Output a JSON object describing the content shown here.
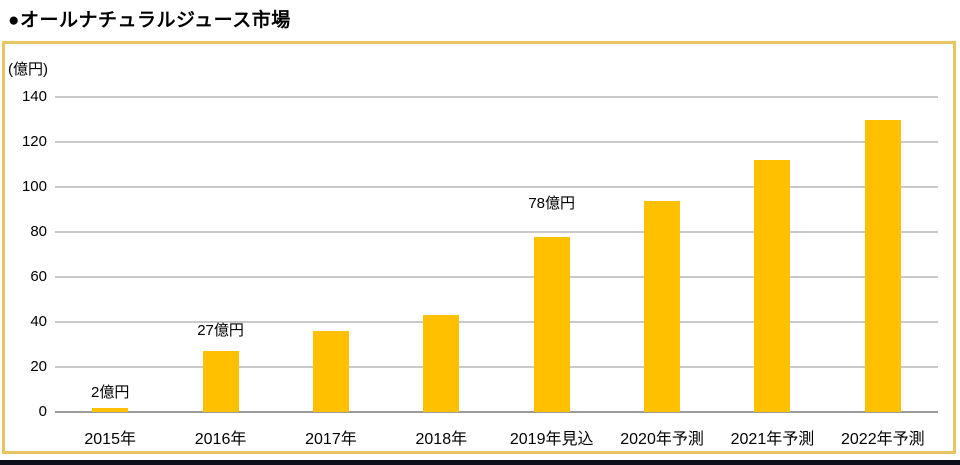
{
  "page": {
    "title_bullet": "●",
    "title": "オールナチュラルジュース市場"
  },
  "chart_data": {
    "type": "bar",
    "title": "オールナチュラルジュース市場",
    "unit_label": "(億円)",
    "categories": [
      "2015年",
      "2016年",
      "2017年",
      "2018年",
      "2019年見込",
      "2020年予測",
      "2021年予測",
      "2022年予測"
    ],
    "values": [
      2,
      27,
      36,
      43,
      78,
      94,
      112,
      130
    ],
    "bar_labels": [
      "2億円",
      "27億円",
      null,
      null,
      "78億円",
      null,
      null,
      null
    ],
    "yticks": [
      0,
      20,
      40,
      60,
      80,
      100,
      120,
      140
    ],
    "ylim": [
      0,
      140
    ],
    "xlabel": "",
    "ylabel": "(億円)",
    "grid": true,
    "legend": "none",
    "colors": {
      "bar": "#FFC000",
      "frame_border": "#E8C55F",
      "gridline": "#C9C9C9",
      "axis_line": "#9B9B9B",
      "text": "#000000",
      "bottom_edge": "#0E0E1C",
      "background": "#FFFFFF"
    }
  }
}
